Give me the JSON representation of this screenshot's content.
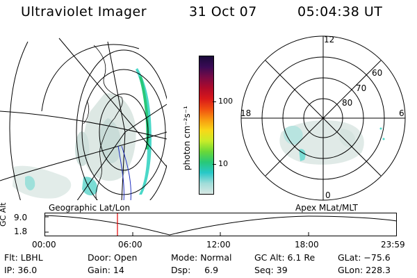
{
  "header": {
    "title": "Ultraviolet Imager",
    "date": "31 Oct 07",
    "time": "05:04:38 UT"
  },
  "colorbar": {
    "unit_label": "photon cm⁻²s⁻¹",
    "ticks": [
      "100",
      "10"
    ],
    "colors": [
      "#1a0a3a",
      "#3a0a55",
      "#7a0a45",
      "#b00a2a",
      "#d8181a",
      "#f05010",
      "#f89a10",
      "#f8d818",
      "#c8ec28",
      "#6ad838",
      "#28c878",
      "#28c8c8",
      "#a0dcd8",
      "#d8e8e4"
    ]
  },
  "polar_plot": {
    "mlt_labels": {
      "top": "12",
      "left": "18",
      "right": "6",
      "bottom": "0"
    },
    "lat_labels": [
      "60",
      "70",
      "80"
    ]
  },
  "map_labels": {
    "left": "Geographic Lat/Lon",
    "right": "Apex MLat/MLT"
  },
  "altitude_track": {
    "ylabel": "GC Alt",
    "yticks": [
      "9.0",
      "1.8"
    ],
    "xticks": [
      "00:00",
      "06:00",
      "12:00",
      "18:00",
      "23:59"
    ],
    "current_marker_color": "#e00000"
  },
  "info": {
    "row1": {
      "filter": "Flt: LBHL",
      "door": "Door: Open",
      "mode": "Mode: Normal",
      "gc_alt": "GC Alt: 6.1 Re",
      "glat": "GLat: −75.6"
    },
    "row2": {
      "ip": "IP: 36.0",
      "gain": "Gain: 14",
      "dsp": "Dsp:     6.9",
      "seq": "Seq: 39",
      "glon": "GLon: 228.3"
    }
  }
}
